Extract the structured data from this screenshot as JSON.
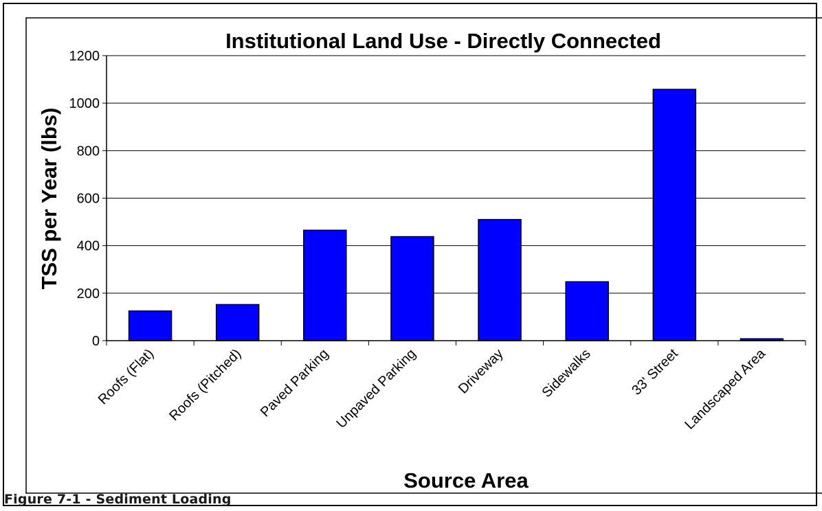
{
  "figure_caption": "Figure 7-1 - Sediment Loading",
  "colors": {
    "bar_fill": "#0000ff",
    "bar_stroke": "#000000",
    "grid": "#000000",
    "text": "#000000"
  },
  "chart_data": {
    "type": "bar",
    "title": "Institutional Land Use - Directly Connected",
    "xlabel": "Source Area",
    "ylabel": "TSS per Year (lbs)",
    "categories": [
      "Roofs (Flat)",
      "Roofs (Pitched)",
      "Paved Parking",
      "Unpaved Parking",
      "Driveway",
      "Sidewalks",
      "33' Street",
      "Landscaped Area"
    ],
    "values": [
      125,
      152,
      465,
      438,
      510,
      248,
      1058,
      8
    ],
    "ylim": [
      0,
      1200
    ],
    "yticks": [
      0,
      200,
      400,
      600,
      800,
      1000,
      1200
    ],
    "grid": true,
    "legend": "none"
  }
}
